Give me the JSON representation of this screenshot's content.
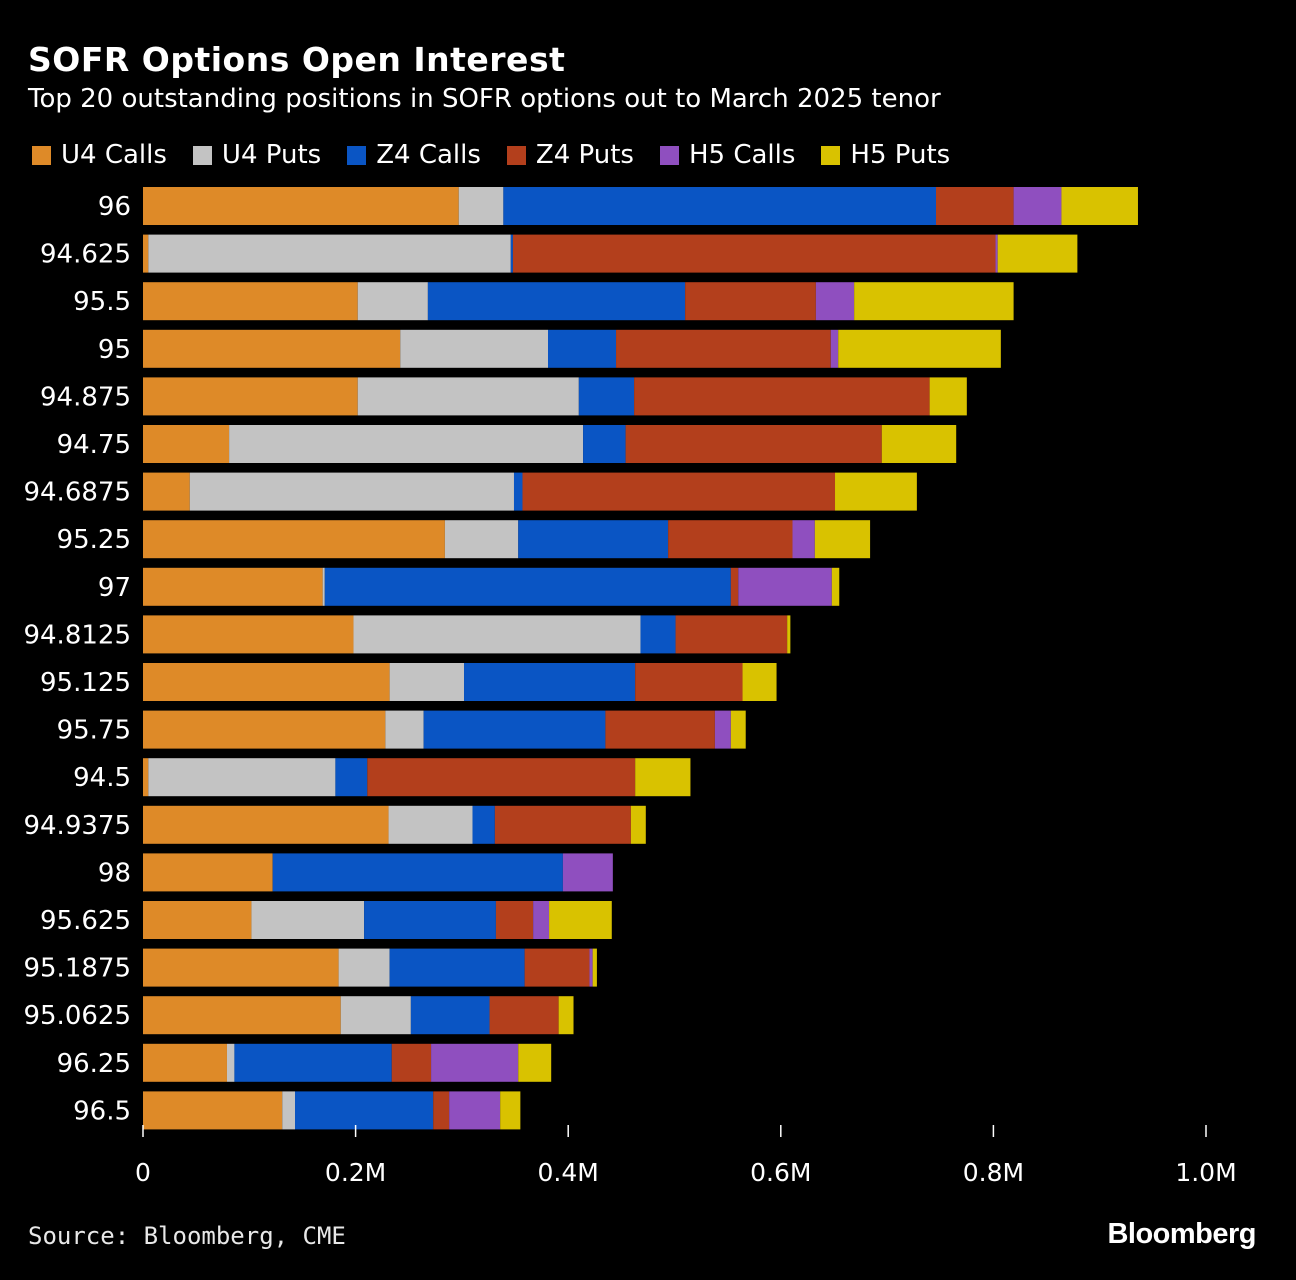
{
  "chart_data": {
    "type": "bar",
    "orientation": "horizontal",
    "stacked": true,
    "title": "SOFR Options Open Interest",
    "subtitle": "Top 20 outstanding positions in SOFR options out to March 2025 tenor",
    "categories": [
      "96",
      "94.625",
      "95.5",
      "95",
      "94.875",
      "94.75",
      "94.6875",
      "95.25",
      "97",
      "94.8125",
      "95.125",
      "95.75",
      "94.5",
      "94.9375",
      "98",
      "95.625",
      "95.1875",
      "95.0625",
      "96.25",
      "96.5"
    ],
    "series": [
      {
        "name": "U4 Calls",
        "color": "#de8a28",
        "values": [
          297000,
          5000,
          202000,
          242000,
          202000,
          81000,
          44000,
          284000,
          169000,
          198000,
          232000,
          228000,
          5000,
          231000,
          122000,
          102000,
          184000,
          186000,
          79000,
          131000
        ]
      },
      {
        "name": "U4 Puts",
        "color": "#c3c3c3",
        "values": [
          42000,
          341000,
          66000,
          139000,
          208000,
          333000,
          305000,
          69000,
          2000,
          270000,
          70000,
          36000,
          176000,
          79000,
          0,
          106000,
          48000,
          66000,
          7000,
          12000
        ]
      },
      {
        "name": "Z4 Calls",
        "color": "#0a55c4",
        "values": [
          407000,
          2000,
          242000,
          64000,
          52000,
          40000,
          8000,
          141000,
          382000,
          33000,
          161000,
          171000,
          30000,
          21000,
          273000,
          124000,
          127000,
          74000,
          148000,
          130000
        ]
      },
      {
        "name": "Z4 Puts",
        "color": "#b33f1c",
        "values": [
          73000,
          454000,
          123000,
          202000,
          278000,
          241000,
          294000,
          117000,
          7000,
          105000,
          101000,
          103000,
          252000,
          128000,
          0,
          35000,
          61000,
          65000,
          37000,
          15000
        ]
      },
      {
        "name": "H5 Calls",
        "color": "#8f4fbf",
        "values": [
          45000,
          2000,
          36000,
          7000,
          0,
          0,
          0,
          21000,
          88000,
          0,
          0,
          15000,
          0,
          0,
          47000,
          15000,
          3000,
          0,
          82000,
          48000
        ]
      },
      {
        "name": "H5 Puts",
        "color": "#d9c200",
        "values": [
          72000,
          75000,
          150000,
          153000,
          35000,
          70000,
          77000,
          52000,
          7000,
          3000,
          32000,
          14000,
          52000,
          14000,
          0,
          59000,
          4000,
          14000,
          31000,
          19000
        ]
      }
    ],
    "xlim": [
      0,
      1000000
    ],
    "xticks": [
      0,
      200000,
      400000,
      600000,
      800000,
      1000000
    ],
    "xtick_labels": [
      "0",
      "0.2M",
      "0.4M",
      "0.6M",
      "0.8M",
      "1.0M"
    ],
    "legend_position": "top-left",
    "grid": false
  },
  "footer": {
    "source": "Source: Bloomberg, CME",
    "brand": "Bloomberg"
  }
}
